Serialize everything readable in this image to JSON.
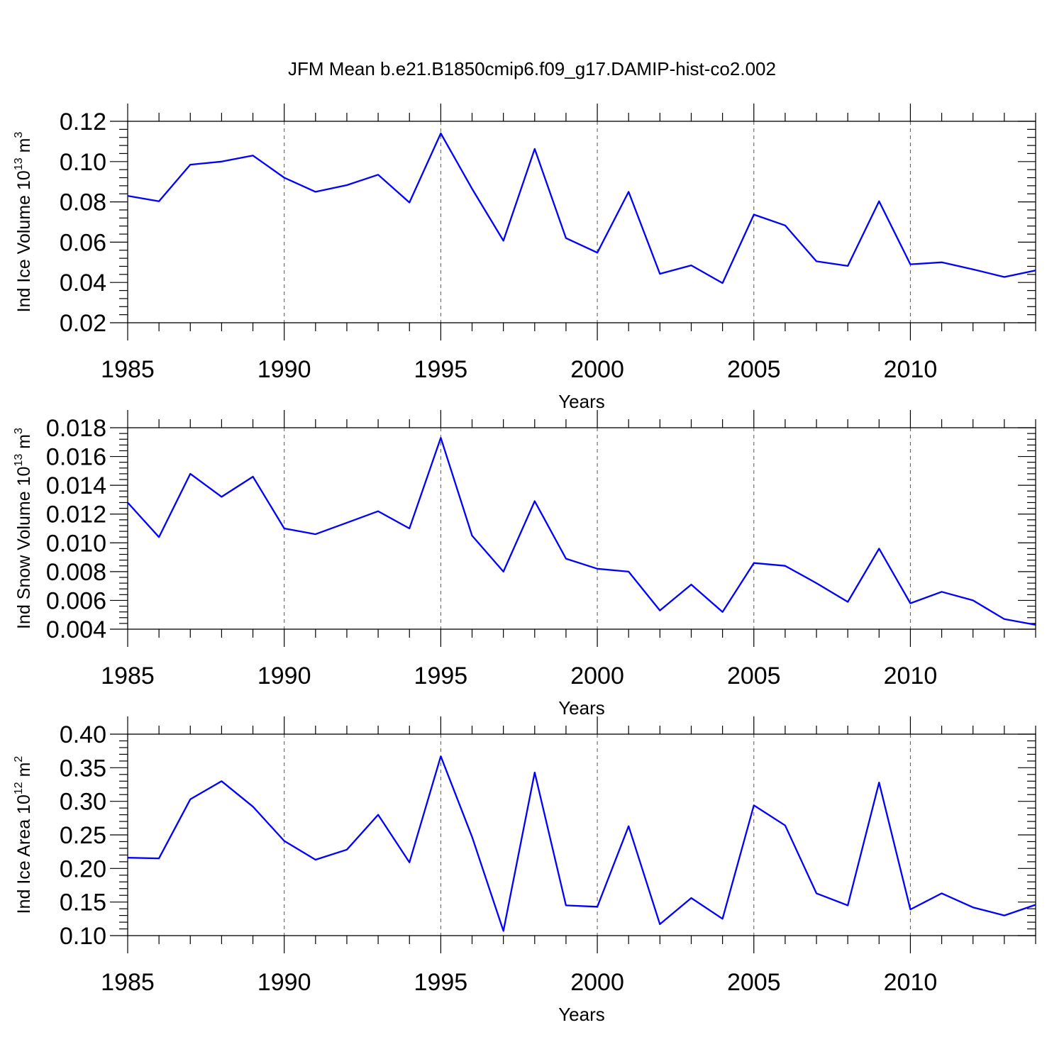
{
  "figure_title": "JFM Mean b.e21.B1850cmip6.f09_g17.DAMIP-hist-co2.002",
  "line_color": "#0000ff",
  "chart_data": [
    {
      "type": "line",
      "title": "JFM Mean b.e21.B1850cmip6.f09_g17.DAMIP-hist-co2.002",
      "xlabel": "Years",
      "ylabel": {
        "base": "Ind Ice Volume 10",
        "exp": "13",
        "unit": " m",
        "unit_exp": "3"
      },
      "xlim": [
        1985,
        2014
      ],
      "ylim": [
        0.02,
        0.12
      ],
      "xticks": [
        1985,
        1990,
        1995,
        2000,
        2005,
        2010
      ],
      "xtick_labels": [
        "1985",
        "1990",
        "1995",
        "2000",
        "2005",
        "2010"
      ],
      "yticks": [
        0.02,
        0.04,
        0.06,
        0.08,
        0.1,
        0.12
      ],
      "ytick_labels": [
        "0.02",
        "0.04",
        "0.06",
        "0.08",
        "0.10",
        "0.12"
      ],
      "grid_x": [
        1990,
        1995,
        2000,
        2005,
        2010
      ],
      "x": [
        1985,
        1986,
        1987,
        1988,
        1989,
        1990,
        1991,
        1992,
        1993,
        1994,
        1995,
        1996,
        1997,
        1998,
        1999,
        2000,
        2001,
        2002,
        2003,
        2004,
        2005,
        2006,
        2007,
        2008,
        2009,
        2010,
        2011,
        2012,
        2013,
        2014
      ],
      "values": [
        0.083,
        0.0803,
        0.0985,
        0.1,
        0.103,
        0.092,
        0.085,
        0.0883,
        0.0935,
        0.0797,
        0.114,
        0.0865,
        0.0607,
        0.1063,
        0.062,
        0.0548,
        0.085,
        0.0443,
        0.0485,
        0.0397,
        0.0737,
        0.0683,
        0.0505,
        0.0482,
        0.0803,
        0.049,
        0.05,
        0.0465,
        0.0427,
        0.046
      ]
    },
    {
      "type": "line",
      "xlabel": "Years",
      "ylabel": {
        "base": "Ind Snow Volume 10",
        "exp": "13",
        "unit": " m",
        "unit_exp": "3"
      },
      "xlim": [
        1985,
        2014
      ],
      "ylim": [
        0.004,
        0.018
      ],
      "xticks": [
        1985,
        1990,
        1995,
        2000,
        2005,
        2010
      ],
      "xtick_labels": [
        "1985",
        "1990",
        "1995",
        "2000",
        "2005",
        "2010"
      ],
      "yticks": [
        0.004,
        0.006,
        0.008,
        0.01,
        0.012,
        0.014,
        0.016,
        0.018
      ],
      "ytick_labels": [
        "0.004",
        "0.006",
        "0.008",
        "0.010",
        "0.012",
        "0.014",
        "0.016",
        "0.018"
      ],
      "grid_x": [
        1990,
        1995,
        2000,
        2005,
        2010
      ],
      "x": [
        1985,
        1986,
        1987,
        1988,
        1989,
        1990,
        1991,
        1992,
        1993,
        1994,
        1995,
        1996,
        1997,
        1998,
        1999,
        2000,
        2001,
        2002,
        2003,
        2004,
        2005,
        2006,
        2007,
        2008,
        2009,
        2010,
        2011,
        2012,
        2013,
        2014
      ],
      "values": [
        0.0128,
        0.0104,
        0.0148,
        0.0132,
        0.0146,
        0.011,
        0.0106,
        0.0114,
        0.0122,
        0.011,
        0.0173,
        0.0105,
        0.008,
        0.0129,
        0.0089,
        0.0082,
        0.008,
        0.0053,
        0.0071,
        0.0052,
        0.0086,
        0.0084,
        0.0072,
        0.0059,
        0.0096,
        0.0058,
        0.0066,
        0.006,
        0.0047,
        0.0043
      ]
    },
    {
      "type": "line",
      "xlabel": "Years",
      "ylabel": {
        "base": "Ind Ice Area 10",
        "exp": "12",
        "unit": " m",
        "unit_exp": "2"
      },
      "xlim": [
        1985,
        2014
      ],
      "ylim": [
        0.1,
        0.4
      ],
      "xticks": [
        1985,
        1990,
        1995,
        2000,
        2005,
        2010
      ],
      "xtick_labels": [
        "1985",
        "1990",
        "1995",
        "2000",
        "2005",
        "2010"
      ],
      "yticks": [
        0.1,
        0.15,
        0.2,
        0.25,
        0.3,
        0.35,
        0.4
      ],
      "ytick_labels": [
        "0.10",
        "0.15",
        "0.20",
        "0.25",
        "0.30",
        "0.35",
        "0.40"
      ],
      "grid_x": [
        1990,
        1995,
        2000,
        2005,
        2010
      ],
      "x": [
        1985,
        1986,
        1987,
        1988,
        1989,
        1990,
        1991,
        1992,
        1993,
        1994,
        1995,
        1996,
        1997,
        1998,
        1999,
        2000,
        2001,
        2002,
        2003,
        2004,
        2005,
        2006,
        2007,
        2008,
        2009,
        2010,
        2011,
        2012,
        2013,
        2014
      ],
      "values": [
        0.216,
        0.215,
        0.303,
        0.33,
        0.292,
        0.241,
        0.213,
        0.228,
        0.28,
        0.209,
        0.367,
        0.247,
        0.107,
        0.343,
        0.145,
        0.143,
        0.263,
        0.117,
        0.156,
        0.125,
        0.294,
        0.264,
        0.163,
        0.145,
        0.328,
        0.139,
        0.163,
        0.142,
        0.13,
        0.146
      ]
    }
  ]
}
